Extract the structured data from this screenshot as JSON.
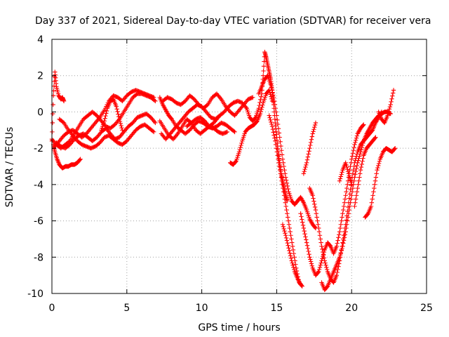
{
  "chart_data": {
    "type": "scatter",
    "title": "Day 337 of 2021, Sidereal Day-to-day VTEC variation (SDTVAR) for receiver vera",
    "xlabel": "GPS time / hours",
    "ylabel": "SDTVAR / TECUs",
    "xlim": [
      0,
      25
    ],
    "ylim": [
      -10,
      4
    ],
    "xticks": [
      0,
      5,
      10,
      15,
      20,
      25
    ],
    "yticks": [
      -10,
      -8,
      -6,
      -4,
      -2,
      0,
      2,
      4
    ],
    "grid": true,
    "marker": "plus",
    "color": "#ff0000",
    "tracks": [
      {
        "x": [
          0.0,
          0.1,
          0.2,
          0.3,
          0.45,
          0.6,
          0.7,
          0.8
        ],
        "y": [
          -1.6,
          0.9,
          2.2,
          1.4,
          0.9,
          0.7,
          0.8,
          0.6
        ]
      },
      {
        "x": [
          0.1,
          0.2,
          0.35,
          0.5,
          0.7,
          0.9,
          1.1,
          1.3,
          1.5,
          1.7,
          1.9
        ],
        "y": [
          -1.8,
          -2.2,
          -2.6,
          -2.9,
          -3.1,
          -3.0,
          -3.0,
          -2.9,
          -2.9,
          -2.8,
          -2.6
        ]
      },
      {
        "x": [
          0.0,
          0.3,
          0.6,
          0.9,
          1.2,
          1.5,
          1.8,
          2.1,
          2.4,
          2.7,
          3.0,
          3.3,
          3.6,
          3.9,
          4.2,
          4.5,
          4.8,
          5.1,
          5.4,
          5.7,
          6.0,
          6.3,
          6.6,
          6.9
        ],
        "y": [
          -1.5,
          -1.8,
          -2.0,
          -1.8,
          -1.6,
          -1.2,
          -0.8,
          -0.4,
          -0.2,
          0.0,
          -0.2,
          -0.5,
          -0.8,
          -0.9,
          -0.7,
          -0.4,
          0.0,
          0.4,
          0.8,
          1.0,
          1.0,
          0.9,
          0.8,
          0.6
        ]
      },
      {
        "x": [
          0.2,
          0.5,
          0.8,
          1.1,
          1.4,
          1.7,
          2.0,
          2.3,
          2.6,
          2.9,
          3.2,
          3.5,
          3.8,
          4.1,
          4.4,
          4.7,
          5.0,
          5.3,
          5.6,
          5.9,
          6.2,
          6.5,
          6.8
        ],
        "y": [
          -1.9,
          -1.6,
          -1.3,
          -1.1,
          -1.0,
          -1.2,
          -1.4,
          -1.2,
          -0.9,
          -0.6,
          -0.3,
          0.1,
          0.6,
          0.9,
          0.8,
          0.6,
          0.9,
          1.1,
          1.2,
          1.1,
          1.0,
          0.9,
          0.8
        ]
      },
      {
        "x": [
          0.3,
          0.6,
          0.9,
          1.2,
          1.5,
          1.8,
          2.1,
          2.4,
          2.7,
          3.0,
          3.3,
          3.6,
          3.9,
          4.2,
          4.5,
          4.8,
          5.1,
          5.4,
          5.7,
          6.0,
          6.3,
          6.6,
          6.9
        ],
        "y": [
          -1.7,
          -1.9,
          -2.0,
          -1.8,
          -1.5,
          -1.3,
          -1.2,
          -1.4,
          -1.6,
          -1.4,
          -1.1,
          -0.9,
          -1.2,
          -1.5,
          -1.4,
          -1.1,
          -0.8,
          -0.6,
          -0.3,
          -0.2,
          -0.1,
          -0.3,
          -0.6
        ]
      },
      {
        "x": [
          0.5,
          0.8,
          1.1,
          1.4,
          1.7,
          2.0,
          2.3,
          2.6,
          2.9,
          3.2,
          3.5,
          3.8,
          4.1,
          4.4,
          4.7,
          5.0,
          5.3,
          5.6,
          5.9,
          6.2,
          6.5,
          6.8
        ],
        "y": [
          -0.4,
          -0.6,
          -1.0,
          -1.3,
          -1.6,
          -1.8,
          -1.9,
          -2.0,
          -1.9,
          -1.7,
          -1.4,
          -1.3,
          -1.5,
          -1.7,
          -1.8,
          -1.6,
          -1.3,
          -1.0,
          -0.8,
          -0.7,
          -0.9,
          -1.1
        ]
      },
      {
        "x": [
          3.3,
          3.5,
          3.7,
          3.9,
          4.1,
          4.3,
          4.5,
          4.7
        ],
        "y": [
          -1.0,
          -0.5,
          0.2,
          0.6,
          0.7,
          0.3,
          -0.4,
          -1.0
        ]
      },
      {
        "x": [
          7.2,
          7.4,
          7.6,
          7.8,
          8.0,
          8.3,
          8.6,
          8.9,
          9.2,
          9.5,
          9.8,
          10.1,
          10.4,
          10.7,
          11.0,
          11.3,
          11.6,
          11.9,
          12.2
        ],
        "y": [
          0.8,
          0.4,
          0.1,
          -0.2,
          -0.4,
          -0.8,
          -1.0,
          -1.2,
          -1.0,
          -0.7,
          -0.5,
          -0.6,
          -0.8,
          -0.9,
          -0.8,
          -0.6,
          -0.7,
          -0.9,
          -1.1
        ]
      },
      {
        "x": [
          7.2,
          7.5,
          7.8,
          8.1,
          8.4,
          8.7,
          9.0,
          9.3,
          9.6,
          9.9,
          10.2,
          10.5,
          10.8,
          11.1,
          11.4,
          11.7
        ],
        "y": [
          -0.5,
          -0.9,
          -1.3,
          -1.5,
          -1.2,
          -0.8,
          -0.4,
          -0.6,
          -1.0,
          -1.2,
          -1.0,
          -0.8,
          -0.9,
          -1.1,
          -1.2,
          -1.1
        ]
      },
      {
        "x": [
          7.3,
          7.6,
          7.9,
          8.2,
          8.5,
          8.8,
          9.1,
          9.4,
          9.7,
          10.0,
          10.3,
          10.6,
          10.9,
          11.2,
          11.5,
          11.8,
          12.1,
          12.4,
          12.7,
          13.0
        ],
        "y": [
          -1.2,
          -1.5,
          -1.2,
          -0.9,
          -0.6,
          -0.3,
          0.0,
          0.2,
          0.4,
          0.3,
          0.0,
          -0.3,
          -0.4,
          -0.2,
          0.0,
          0.3,
          0.5,
          0.6,
          0.5,
          0.2
        ]
      },
      {
        "x": [
          7.4,
          7.7,
          8.0,
          8.3,
          8.6,
          8.9,
          9.2,
          9.5,
          9.8,
          10.1,
          10.4,
          10.7,
          11.0,
          11.3,
          11.6,
          11.9,
          12.2,
          12.5,
          12.8,
          13.1,
          13.4
        ],
        "y": [
          0.6,
          0.8,
          0.7,
          0.5,
          0.4,
          0.6,
          0.9,
          0.7,
          0.4,
          0.2,
          0.4,
          0.8,
          1.0,
          0.7,
          0.3,
          0.0,
          -0.2,
          0.1,
          0.4,
          0.7,
          0.8
        ]
      },
      {
        "x": [
          9.0,
          9.3,
          9.6,
          9.9,
          10.2,
          10.5,
          10.8,
          11.1
        ],
        "y": [
          -0.8,
          -0.6,
          -0.4,
          -0.3,
          -0.5,
          -0.8,
          -0.6,
          -0.3
        ]
      },
      {
        "x": [
          11.9,
          12.1,
          12.3,
          12.5,
          12.7,
          12.9,
          13.1,
          13.3,
          13.5,
          13.7,
          13.9,
          14.1,
          14.3,
          14.5,
          14.7
        ],
        "y": [
          -2.8,
          -2.9,
          -2.7,
          -2.2,
          -1.6,
          -1.1,
          -0.9,
          -0.8,
          -0.7,
          -0.5,
          -0.1,
          0.5,
          1.0,
          1.2,
          0.6
        ]
      },
      {
        "x": [
          13.0,
          13.2,
          13.4,
          13.6,
          13.8,
          14.0,
          14.1,
          14.2,
          14.3,
          14.4,
          14.5,
          14.6,
          14.7,
          14.8,
          14.9,
          15.0,
          15.1,
          15.2,
          15.3,
          15.4,
          15.5,
          15.6,
          15.7
        ],
        "y": [
          0.2,
          -0.3,
          -0.5,
          -0.3,
          0.2,
          1.0,
          2.0,
          3.3,
          3.0,
          2.6,
          2.2,
          1.8,
          1.2,
          0.4,
          -0.6,
          -1.4,
          -2.2,
          -2.8,
          -3.4,
          -3.8,
          -4.2,
          -4.6,
          -4.9
        ]
      },
      {
        "x": [
          13.8,
          14.0,
          14.2,
          14.4,
          14.6,
          14.8,
          15.0,
          15.2,
          15.4,
          15.6,
          15.8,
          16.0,
          16.2,
          16.4,
          16.6,
          16.8,
          17.0,
          17.2,
          17.4,
          17.6
        ],
        "y": [
          1.0,
          1.4,
          1.8,
          2.0,
          1.5,
          0.8,
          -0.2,
          -1.4,
          -2.6,
          -3.6,
          -4.4,
          -4.9,
          -5.1,
          -4.9,
          -4.7,
          -5.0,
          -5.4,
          -5.9,
          -6.2,
          -6.4
        ]
      },
      {
        "x": [
          14.5,
          14.7,
          14.9,
          15.1,
          15.3,
          15.5,
          15.7,
          15.9,
          16.1,
          16.3,
          16.5,
          16.7
        ],
        "y": [
          -0.2,
          -0.8,
          -1.6,
          -2.6,
          -3.6,
          -4.6,
          -5.6,
          -6.6,
          -7.6,
          -8.6,
          -9.4,
          -9.6
        ]
      },
      {
        "x": [
          15.4,
          15.6,
          15.8,
          16.0,
          16.2,
          16.4,
          16.6
        ],
        "y": [
          -6.2,
          -6.8,
          -7.5,
          -8.2,
          -8.8,
          -9.2,
          -9.5
        ]
      },
      {
        "x": [
          16.6,
          16.8,
          17.0,
          17.2,
          17.4,
          17.6,
          17.8,
          18.0,
          18.2,
          18.4,
          18.6,
          18.8,
          19.0,
          19.2,
          19.4,
          19.6,
          19.8,
          20.0,
          20.2,
          20.4,
          20.6,
          20.8
        ],
        "y": [
          -5.6,
          -6.4,
          -7.2,
          -8.0,
          -8.6,
          -9.0,
          -8.8,
          -8.2,
          -7.6,
          -7.2,
          -7.4,
          -7.8,
          -7.4,
          -6.6,
          -5.6,
          -4.6,
          -3.6,
          -2.6,
          -1.8,
          -1.2,
          -0.9,
          -0.7
        ]
      },
      {
        "x": [
          16.8,
          17.0,
          17.2,
          17.4,
          17.6
        ],
        "y": [
          -3.4,
          -2.8,
          -2.0,
          -1.2,
          -0.6
        ]
      },
      {
        "x": [
          17.2,
          17.4,
          17.6,
          17.8,
          18.0,
          18.2,
          18.4,
          18.6,
          18.8,
          19.0,
          19.2,
          19.4,
          19.6,
          19.8,
          20.0,
          20.2,
          20.4,
          20.6,
          20.8,
          21.0,
          21.2,
          21.4,
          21.6,
          21.8,
          22.0
        ],
        "y": [
          -4.2,
          -4.6,
          -5.4,
          -6.4,
          -7.4,
          -8.2,
          -8.8,
          -9.2,
          -9.4,
          -9.0,
          -8.2,
          -7.2,
          -6.2,
          -5.0,
          -3.8,
          -2.8,
          -2.2,
          -1.8,
          -1.6,
          -1.4,
          -1.2,
          -1.0,
          -0.6,
          -0.3,
          0.0
        ]
      },
      {
        "x": [
          18.0,
          18.2,
          18.4,
          18.6,
          18.8,
          19.0,
          19.2,
          19.4,
          19.6,
          19.8,
          20.0,
          20.2,
          20.4,
          20.6,
          20.8,
          21.0,
          21.2,
          21.4,
          21.6,
          21.8,
          22.0,
          22.2,
          22.4,
          22.6
        ],
        "y": [
          -9.4,
          -9.8,
          -9.6,
          -9.2,
          -8.8,
          -8.4,
          -8.0,
          -7.4,
          -6.6,
          -5.6,
          -4.6,
          -3.6,
          -2.8,
          -2.2,
          -1.6,
          -1.2,
          -0.9,
          -0.6,
          -0.4,
          -0.2,
          -0.1,
          0.0,
          0.0,
          -0.1
        ]
      },
      {
        "x": [
          19.2,
          19.4,
          19.6,
          19.8,
          20.0
        ],
        "y": [
          -3.8,
          -3.2,
          -2.8,
          -3.4,
          -4.0
        ]
      },
      {
        "x": [
          20.9,
          21.1,
          21.3,
          21.5,
          21.7,
          21.9,
          22.1,
          22.3,
          22.5,
          22.7,
          22.9
        ],
        "y": [
          -5.8,
          -5.6,
          -5.2,
          -4.2,
          -3.2,
          -2.6,
          -2.2,
          -2.0,
          -2.1,
          -2.2,
          -2.0
        ]
      },
      {
        "x": [
          20.2,
          20.4,
          20.6,
          20.8,
          21.0,
          21.2,
          21.4,
          21.6
        ],
        "y": [
          -5.2,
          -4.2,
          -3.2,
          -2.4,
          -2.0,
          -1.8,
          -1.6,
          -1.4
        ]
      },
      {
        "x": [
          21.8,
          22.0,
          22.2,
          22.4,
          22.6,
          22.8
        ],
        "y": [
          0.0,
          -0.4,
          -0.6,
          -0.2,
          0.4,
          1.2
        ]
      }
    ]
  }
}
